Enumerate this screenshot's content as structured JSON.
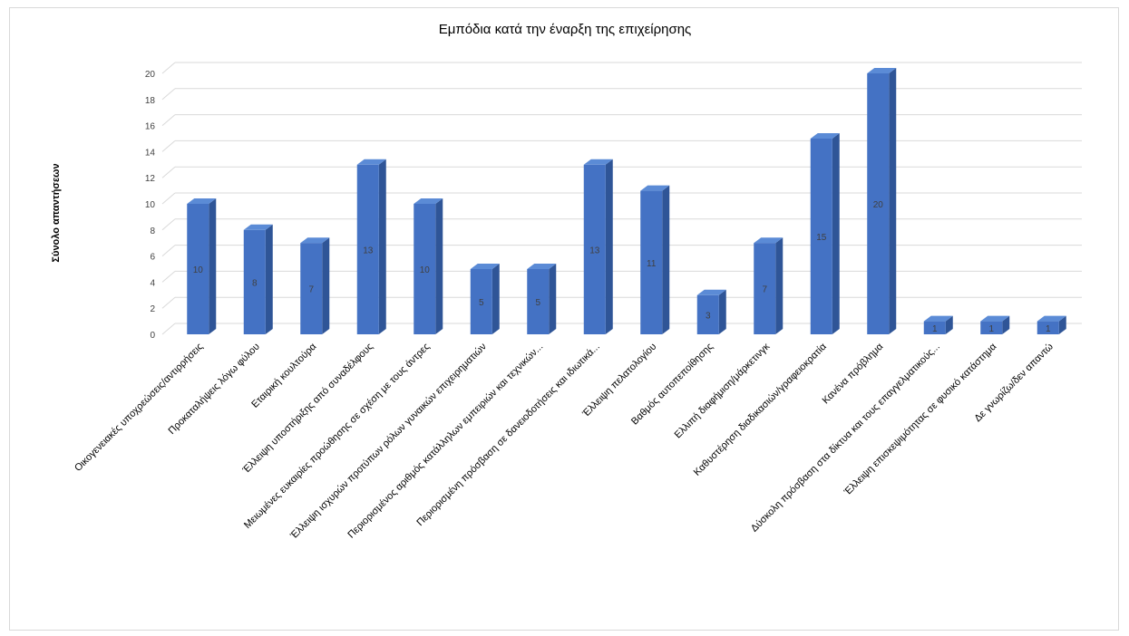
{
  "chart_data": {
    "type": "bar",
    "title": "Εμπόδια κατά την έναρξη της επιχείρησης",
    "ylabel": "Σύνολο απαντήσεων",
    "xlabel": "",
    "ylim": [
      0,
      20
    ],
    "yticks": [
      0,
      2,
      4,
      6,
      8,
      10,
      12,
      14,
      16,
      18,
      20
    ],
    "grid": true,
    "legend": "none",
    "bar_style": "3d-column",
    "colors": {
      "bar_front": "#4472c4",
      "bar_side": "#2f5597",
      "bar_top": "#5b8bd6",
      "grid": "#d9d9d9",
      "text": "#404040"
    },
    "categories": [
      "Οικογενειακές υποχρεώσεις/αντιρρήσεις",
      "Προκαταλήψεις λόγω φύλου",
      "Εταιρική κουλτούρα",
      "Έλλειψη υποστήριξης από συναδέλφους",
      "Μειωμένες ευκαιρίες προώθησης σε σχέση με τους άντρες",
      "Έλλειψη ισχυρών προτύπων ρόλων γυναικών επιχειρηματιών",
      "Περιορισμένος αριθμός κατάλληλων εμπειριών και τεχνικών...",
      "Περιορισμένη πρόσβαση σε δανειοδοτήσεις και ιδιωτικά...",
      "Έλλειψη πελατολογίου",
      "Βαθμός αυτοπεποίθησης",
      "Ελλιπή διαφήμιση/μάρκετινγκ",
      "Καθυστέρηση διαδικασιών/γραφειοκρατία",
      "Κανένα πρόβλημα",
      "Δύσκολη πρόσβαση στα δίκτυα και τους επαγγελματικούς...",
      "Έλλειψη επισκεψιμότητας σε φυσικό κατάστημα",
      "Δε γνωρίζω/δεν απαντώ"
    ],
    "values": [
      10,
      8,
      7,
      13,
      10,
      5,
      5,
      13,
      11,
      3,
      7,
      15,
      20,
      1,
      1,
      1
    ],
    "data_labels": [
      "10",
      "8",
      "7",
      "13",
      "10",
      "5",
      "5",
      "13",
      "11",
      "3",
      "7",
      "15",
      "20",
      "1",
      "1",
      "1"
    ]
  }
}
